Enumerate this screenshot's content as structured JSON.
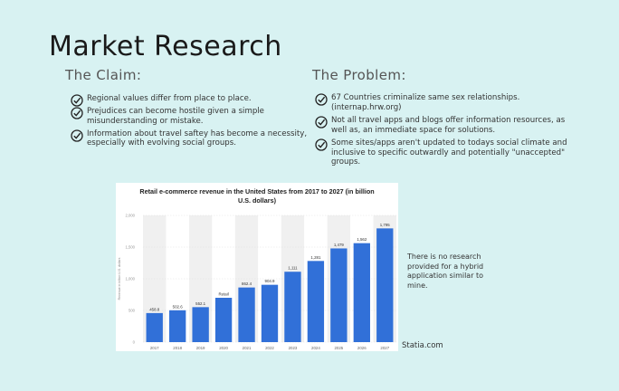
{
  "slide": {
    "title": "Market Research",
    "claim_heading": "The Claim:",
    "problem_heading": "The Problem:",
    "claim_points": [
      "Regional values differ from place to place.",
      "Prejudices can become hostile given a simple misunderstanding or mistake.",
      "Information about travel saftey has become a necessity, especially with evolving social groups."
    ],
    "problem_points": [
      "67 Countries criminalize same sex relationships. (internap.hrw.org)",
      "Not all travel apps and blogs offer information resources, as well as, an immediate space for solutions.",
      "Some sites/apps aren't updated to todays social climate and inclusive to specific outwardly and potentially \"unaccepted\" groups."
    ],
    "side_note": "There is no research provided for a hybrid application similar to mine.",
    "source": "Statia.com",
    "check_icon": "check-circle-icon"
  },
  "chart_data": {
    "type": "bar",
    "title": "Retail e-commerce revenue in the United States from 2017 to 2027 (in billion U.S. dollars)",
    "xlabel": "",
    "ylabel": "Revenue in billion U.S. dollars",
    "categories": [
      "2017",
      "2018",
      "2019",
      "2020",
      "2021",
      "2022",
      "2023",
      "2024",
      "2025",
      "2026",
      "2027"
    ],
    "values": [
      458.8,
      502.6,
      552.1,
      700,
      862.4,
      904.9,
      1111,
      1281,
      1479,
      1562,
      1795
    ],
    "labels": [
      "458.8",
      "502.6",
      "552.1",
      "Retail",
      "862.4",
      "904.9",
      "1,111",
      "1,281",
      "1,479",
      "1,562",
      "1,795"
    ],
    "ylim": [
      0,
      2000
    ],
    "yticks": [
      "0",
      "500",
      "1,000",
      "1,500",
      "2,000"
    ],
    "ytick_values": [
      0,
      500,
      1000,
      1500,
      2000
    ],
    "bar_color": "#3170d8",
    "band_colors": [
      "#f0f0f0",
      "#ffffff"
    ],
    "grid": true,
    "legend": "none"
  }
}
